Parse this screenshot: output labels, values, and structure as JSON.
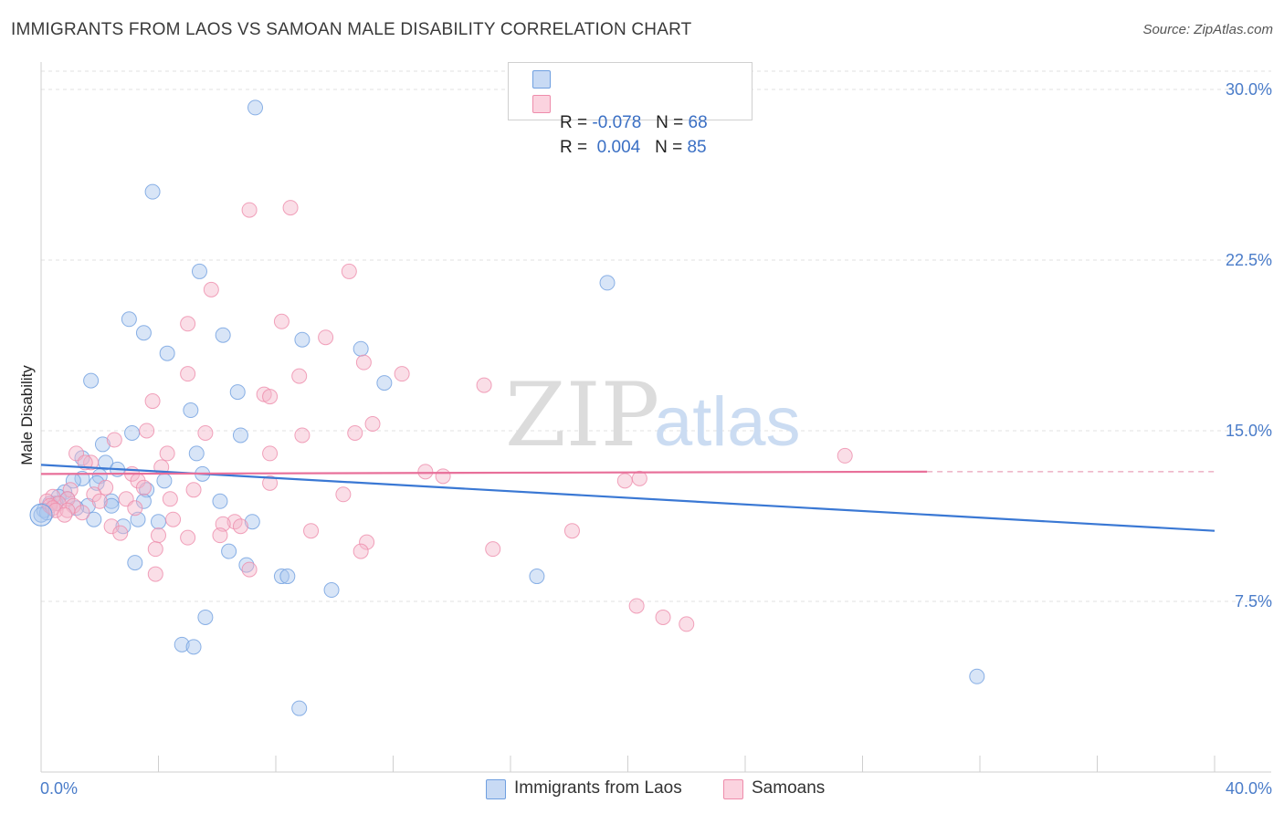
{
  "title": "IMMIGRANTS FROM LAOS VS SAMOAN MALE DISABILITY CORRELATION CHART",
  "source": "Source: ZipAtlas.com",
  "watermark": {
    "zip": "ZIP",
    "atlas": "atlas"
  },
  "legend": {
    "r_label": "R =",
    "n_label": "N =",
    "rows": [
      {
        "r": "-0.078",
        "n": "68",
        "color": "#a9c6ee"
      },
      {
        "r": "0.004",
        "n": "85",
        "color": "#f5b6c9"
      }
    ]
  },
  "bottom_legend": [
    "Immigrants from Laos",
    "Samoans"
  ],
  "chart_data": {
    "type": "scatter",
    "xlabel": "",
    "ylabel": "Male Disability",
    "xlim": [
      0,
      40
    ],
    "ylim": [
      0,
      30.8
    ],
    "x_tick_labels": [
      "0.0%",
      "40.0%"
    ],
    "y_ticks": [
      7.5,
      15.0,
      22.5,
      30.0
    ],
    "y_tick_labels": [
      "7.5%",
      "15.0%",
      "22.5%",
      "30.0%"
    ],
    "grid": true,
    "series": [
      {
        "name": "Immigrants from Laos",
        "color": "#6f9fe0",
        "fill": "#a9c6ee",
        "points": [
          [
            7.3,
            29.2
          ],
          [
            3.8,
            25.5
          ],
          [
            5.4,
            22.0
          ],
          [
            19.3,
            21.5
          ],
          [
            3.0,
            19.9
          ],
          [
            3.5,
            19.3
          ],
          [
            6.2,
            19.2
          ],
          [
            8.9,
            19.0
          ],
          [
            10.9,
            18.6
          ],
          [
            4.3,
            18.4
          ],
          [
            1.7,
            17.2
          ],
          [
            11.7,
            17.1
          ],
          [
            6.7,
            16.7
          ],
          [
            5.1,
            15.9
          ],
          [
            3.1,
            14.9
          ],
          [
            6.8,
            14.8
          ],
          [
            2.1,
            14.4
          ],
          [
            5.3,
            14.0
          ],
          [
            1.4,
            13.8
          ],
          [
            2.2,
            13.6
          ],
          [
            2.6,
            13.3
          ],
          [
            2.0,
            13.0
          ],
          [
            5.5,
            13.1
          ],
          [
            1.4,
            12.9
          ],
          [
            1.1,
            12.8
          ],
          [
            4.2,
            12.8
          ],
          [
            1.9,
            12.7
          ],
          [
            3.6,
            12.4
          ],
          [
            0.8,
            12.3
          ],
          [
            0.6,
            12.1
          ],
          [
            0.9,
            12.0
          ],
          [
            2.4,
            11.9
          ],
          [
            3.5,
            11.9
          ],
          [
            0.3,
            11.8
          ],
          [
            0.5,
            11.8
          ],
          [
            6.1,
            11.9
          ],
          [
            2.4,
            11.7
          ],
          [
            1.6,
            11.7
          ],
          [
            0.1,
            11.5
          ],
          [
            0.2,
            11.4
          ],
          [
            1.2,
            11.6
          ],
          [
            0.0,
            11.3
          ],
          [
            3.3,
            11.1
          ],
          [
            1.8,
            11.1
          ],
          [
            4.0,
            11.0
          ],
          [
            7.2,
            11.0
          ],
          [
            2.8,
            10.8
          ],
          [
            6.4,
            9.7
          ],
          [
            3.2,
            9.2
          ],
          [
            7.0,
            9.1
          ],
          [
            8.2,
            8.6
          ],
          [
            8.4,
            8.6
          ],
          [
            16.9,
            8.6
          ],
          [
            9.9,
            8.0
          ],
          [
            5.6,
            6.8
          ],
          [
            4.8,
            5.6
          ],
          [
            5.2,
            5.5
          ],
          [
            31.9,
            4.2
          ],
          [
            8.8,
            2.8
          ]
        ],
        "trend": {
          "x": [
            0,
            40
          ],
          "y": [
            13.5,
            10.6
          ]
        }
      },
      {
        "name": "Samoans",
        "color": "#ee8cab",
        "fill": "#f5b6c9",
        "points": [
          [
            8.5,
            24.8
          ],
          [
            7.1,
            24.7
          ],
          [
            10.5,
            22.0
          ],
          [
            5.8,
            21.2
          ],
          [
            8.2,
            19.8
          ],
          [
            5.0,
            19.7
          ],
          [
            9.7,
            19.1
          ],
          [
            11.0,
            18.0
          ],
          [
            5.0,
            17.5
          ],
          [
            8.8,
            17.4
          ],
          [
            12.3,
            17.5
          ],
          [
            15.1,
            17.0
          ],
          [
            7.6,
            16.6
          ],
          [
            7.8,
            16.5
          ],
          [
            3.8,
            16.3
          ],
          [
            11.3,
            15.3
          ],
          [
            3.6,
            15.0
          ],
          [
            10.7,
            14.9
          ],
          [
            8.9,
            14.8
          ],
          [
            5.6,
            14.9
          ],
          [
            2.5,
            14.6
          ],
          [
            1.2,
            14.0
          ],
          [
            4.3,
            14.0
          ],
          [
            7.8,
            14.0
          ],
          [
            27.4,
            13.9
          ],
          [
            1.7,
            13.6
          ],
          [
            1.5,
            13.6
          ],
          [
            4.1,
            13.4
          ],
          [
            3.1,
            13.1
          ],
          [
            13.1,
            13.2
          ],
          [
            3.3,
            12.8
          ],
          [
            7.8,
            12.7
          ],
          [
            13.7,
            13.0
          ],
          [
            19.9,
            12.8
          ],
          [
            20.4,
            12.9
          ],
          [
            2.2,
            12.5
          ],
          [
            3.5,
            12.5
          ],
          [
            5.2,
            12.4
          ],
          [
            1.0,
            12.4
          ],
          [
            10.3,
            12.2
          ],
          [
            1.8,
            12.2
          ],
          [
            0.4,
            12.1
          ],
          [
            4.4,
            12.0
          ],
          [
            0.9,
            12.0
          ],
          [
            2.9,
            12.0
          ],
          [
            0.2,
            11.9
          ],
          [
            2.0,
            11.9
          ],
          [
            0.6,
            11.8
          ],
          [
            0.3,
            11.7
          ],
          [
            1.1,
            11.7
          ],
          [
            3.2,
            11.6
          ],
          [
            0.4,
            11.6
          ],
          [
            0.5,
            11.5
          ],
          [
            0.9,
            11.5
          ],
          [
            1.4,
            11.4
          ],
          [
            0.8,
            11.3
          ],
          [
            4.5,
            11.1
          ],
          [
            6.6,
            11.0
          ],
          [
            6.2,
            10.9
          ],
          [
            6.8,
            10.8
          ],
          [
            2.4,
            10.8
          ],
          [
            9.2,
            10.6
          ],
          [
            18.1,
            10.6
          ],
          [
            2.7,
            10.5
          ],
          [
            6.1,
            10.4
          ],
          [
            4.0,
            10.4
          ],
          [
            5.0,
            10.3
          ],
          [
            11.1,
            10.1
          ],
          [
            3.9,
            9.8
          ],
          [
            15.4,
            9.8
          ],
          [
            10.9,
            9.7
          ],
          [
            7.1,
            8.9
          ],
          [
            3.9,
            8.7
          ],
          [
            20.3,
            7.3
          ],
          [
            21.2,
            6.8
          ],
          [
            22.0,
            6.5
          ]
        ],
        "trend": {
          "x": [
            0,
            30.2
          ],
          "y": [
            13.1,
            13.2
          ]
        },
        "trend_dashed": {
          "x": [
            30.2,
            40
          ],
          "y": [
            13.2,
            13.2
          ]
        }
      }
    ]
  }
}
